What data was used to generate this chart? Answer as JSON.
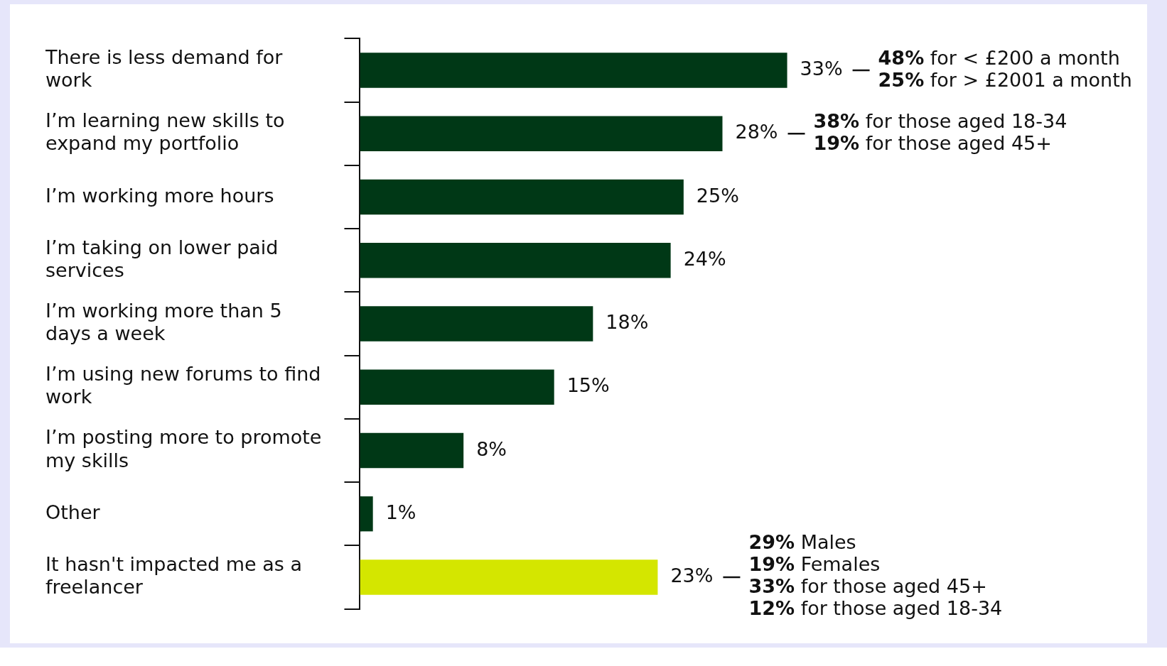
{
  "chart_data": {
    "type": "bar",
    "orientation": "horizontal",
    "categories": [
      "There is less demand for work",
      "I’m learning new skills to expand my portfolio",
      "I’m working more hours",
      "I’m taking on lower paid services",
      "I’m working more than 5 days a week",
      "I’m using new forums to find work",
      "I’m posting more to promote my skills",
      "Other",
      "It hasn't impacted me as a freelancer"
    ],
    "values": [
      33,
      28,
      25,
      24,
      18,
      15,
      8,
      1,
      23
    ],
    "value_labels": [
      "33%",
      "28%",
      "25%",
      "24%",
      "18%",
      "15%",
      "8%",
      "1%",
      "23%"
    ],
    "colors": [
      "#003816",
      "#003816",
      "#003816",
      "#003816",
      "#003816",
      "#003816",
      "#003816",
      "#003816",
      "#d4e600"
    ],
    "annotations": [
      "48% for < £200 a month",
      "25% for > £2001 a month",
      "38% for those aged 18-34",
      "19% for those aged 45+",
      "29% Males",
      "19% Females",
      "33% for those aged 45+",
      "12% for those aged 18-34"
    ],
    "legend": false
  }
}
